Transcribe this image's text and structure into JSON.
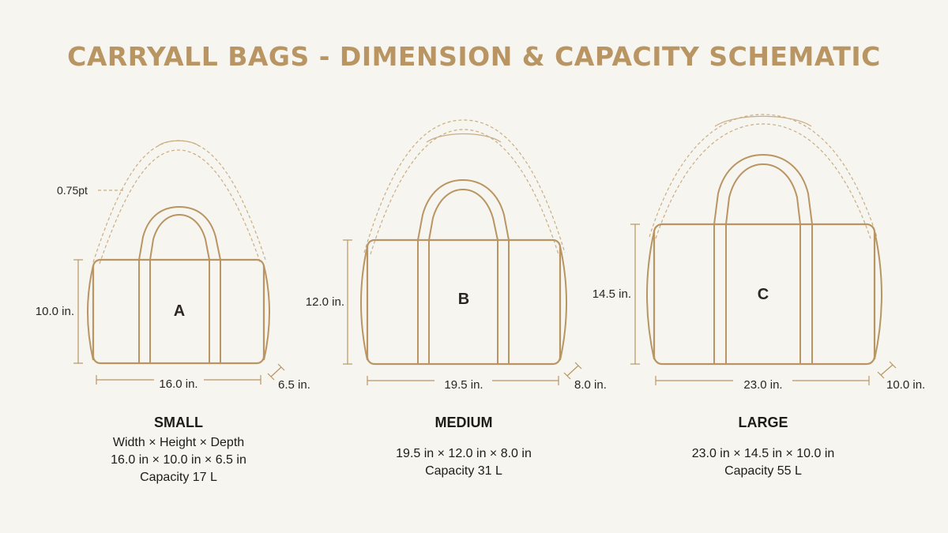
{
  "title": "CARRYALL BAGS - DIMENSION & CAPACITY SCHEMATIC",
  "colors": {
    "outline": "#b89563",
    "dashed": "#c9ad84",
    "title": "#b89563"
  },
  "strap_callout": "0.75pt",
  "bags": [
    {
      "letter": "A",
      "size_name": "SMALL",
      "height_label": "10.0 in.",
      "width_label": "16.0 in.",
      "depth_label": "6.5 in.",
      "spec_header": "Width × Height × Depth",
      "dims": "16.0 in × 10.0 in × 6.5 in",
      "capacity": "Capacity 17 L"
    },
    {
      "letter": "B",
      "size_name": "MEDIUM",
      "height_label": "12.0 in.",
      "width_label": "19.5 in.",
      "depth_label": "8.0 in.",
      "dims": "19.5 in × 12.0 in × 8.0 in",
      "capacity": "Capacity 31 L"
    },
    {
      "letter": "C",
      "size_name": "LARGE",
      "height_label": "14.5 in.",
      "width_label": "23.0 in.",
      "depth_label": "10.0 in.",
      "dims": "23.0 in × 14.5 in × 10.0 in",
      "capacity": "Capacity 55 L"
    }
  ]
}
